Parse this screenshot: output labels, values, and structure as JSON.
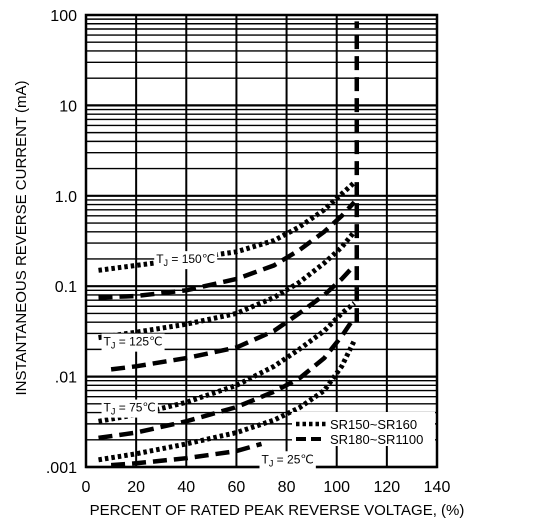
{
  "chart_data": {
    "type": "line",
    "xlabel": "PERCENT OF RATED PEAK REVERSE VOLTAGE, (%)",
    "ylabel": "INSTANTANEOUS REVERSE CURRENT (mA)",
    "xlim": [
      0,
      140
    ],
    "ylim": [
      0.001,
      100
    ],
    "yscale": "log",
    "x_ticks": [
      {
        "value": 0,
        "label": "0"
      },
      {
        "value": 20,
        "label": "20"
      },
      {
        "value": 40,
        "label": "40"
      },
      {
        "value": 60,
        "label": "60"
      },
      {
        "value": 80,
        "label": "80"
      },
      {
        "value": 100,
        "label": "100"
      },
      {
        "value": 120,
        "label": "120"
      },
      {
        "value": 140,
        "label": "140"
      }
    ],
    "y_ticks": [
      {
        "value": 0.001,
        "label": ".001"
      },
      {
        "value": 0.01,
        "label": ".01"
      },
      {
        "value": 0.1,
        "label": "0.1"
      },
      {
        "value": 1,
        "label": "1.0"
      },
      {
        "value": 10,
        "label": "10"
      },
      {
        "value": 100,
        "label": "100"
      }
    ],
    "grid": true,
    "legend": {
      "position": "bottom-right",
      "entries": [
        {
          "label": "SR150~SR160",
          "style": "dotted"
        },
        {
          "label": "SR180~SR1100",
          "style": "dashed"
        }
      ]
    },
    "annotations": [
      {
        "text": "T",
        "sub": "J",
        "rest": " = 150℃",
        "x": 28,
        "y": 0.18
      },
      {
        "text": "T",
        "sub": "J",
        "rest": " = 125℃",
        "x": 7,
        "y": 0.022
      },
      {
        "text": "T",
        "sub": "J",
        "rest": " = 75℃",
        "x": 7,
        "y": 0.0041
      },
      {
        "text": "T",
        "sub": "J",
        "rest": " = 25℃",
        "x": 70,
        "y": 0.0011
      }
    ],
    "vertical_line": {
      "x": 108,
      "y_from": 0.04,
      "y_to": 85,
      "style": "dashed"
    },
    "series": [
      {
        "style": "dotted",
        "x": [
          5,
          20,
          40,
          60,
          75,
          85,
          95,
          102,
          107
        ],
        "y": [
          0.15,
          0.17,
          0.2,
          0.24,
          0.32,
          0.45,
          0.7,
          1.05,
          1.4
        ]
      },
      {
        "style": "dashed",
        "x": [
          5,
          20,
          40,
          60,
          75,
          85,
          95,
          102,
          107
        ],
        "y": [
          0.075,
          0.078,
          0.09,
          0.12,
          0.17,
          0.25,
          0.4,
          0.6,
          0.85
        ]
      },
      {
        "style": "dotted",
        "x": [
          5,
          20,
          40,
          60,
          75,
          85,
          95,
          102,
          107
        ],
        "y": [
          0.027,
          0.031,
          0.038,
          0.05,
          0.075,
          0.11,
          0.18,
          0.27,
          0.4
        ]
      },
      {
        "style": "dashed",
        "x": [
          10,
          20,
          40,
          60,
          75,
          85,
          95,
          102,
          107
        ],
        "y": [
          0.012,
          0.013,
          0.016,
          0.021,
          0.032,
          0.05,
          0.08,
          0.12,
          0.17
        ]
      },
      {
        "style": "dotted",
        "x": [
          5,
          20,
          40,
          60,
          75,
          85,
          95,
          102,
          107
        ],
        "y": [
          0.0032,
          0.0038,
          0.0052,
          0.008,
          0.013,
          0.02,
          0.032,
          0.05,
          0.065
        ]
      },
      {
        "style": "dashed",
        "x": [
          5,
          20,
          40,
          60,
          75,
          85,
          95,
          102,
          107
        ],
        "y": [
          0.0021,
          0.0024,
          0.0032,
          0.0046,
          0.0068,
          0.0095,
          0.016,
          0.028,
          0.045
        ]
      },
      {
        "style": "dotted",
        "x": [
          5,
          20,
          40,
          60,
          75,
          85,
          95,
          102,
          107
        ],
        "y": [
          0.0012,
          0.0014,
          0.0018,
          0.0024,
          0.0033,
          0.0045,
          0.007,
          0.013,
          0.025
        ]
      },
      {
        "style": "dashed",
        "x": [
          10,
          20,
          40,
          60,
          70
        ],
        "y": [
          0.00105,
          0.0011,
          0.00125,
          0.0015,
          0.0018
        ]
      }
    ]
  }
}
